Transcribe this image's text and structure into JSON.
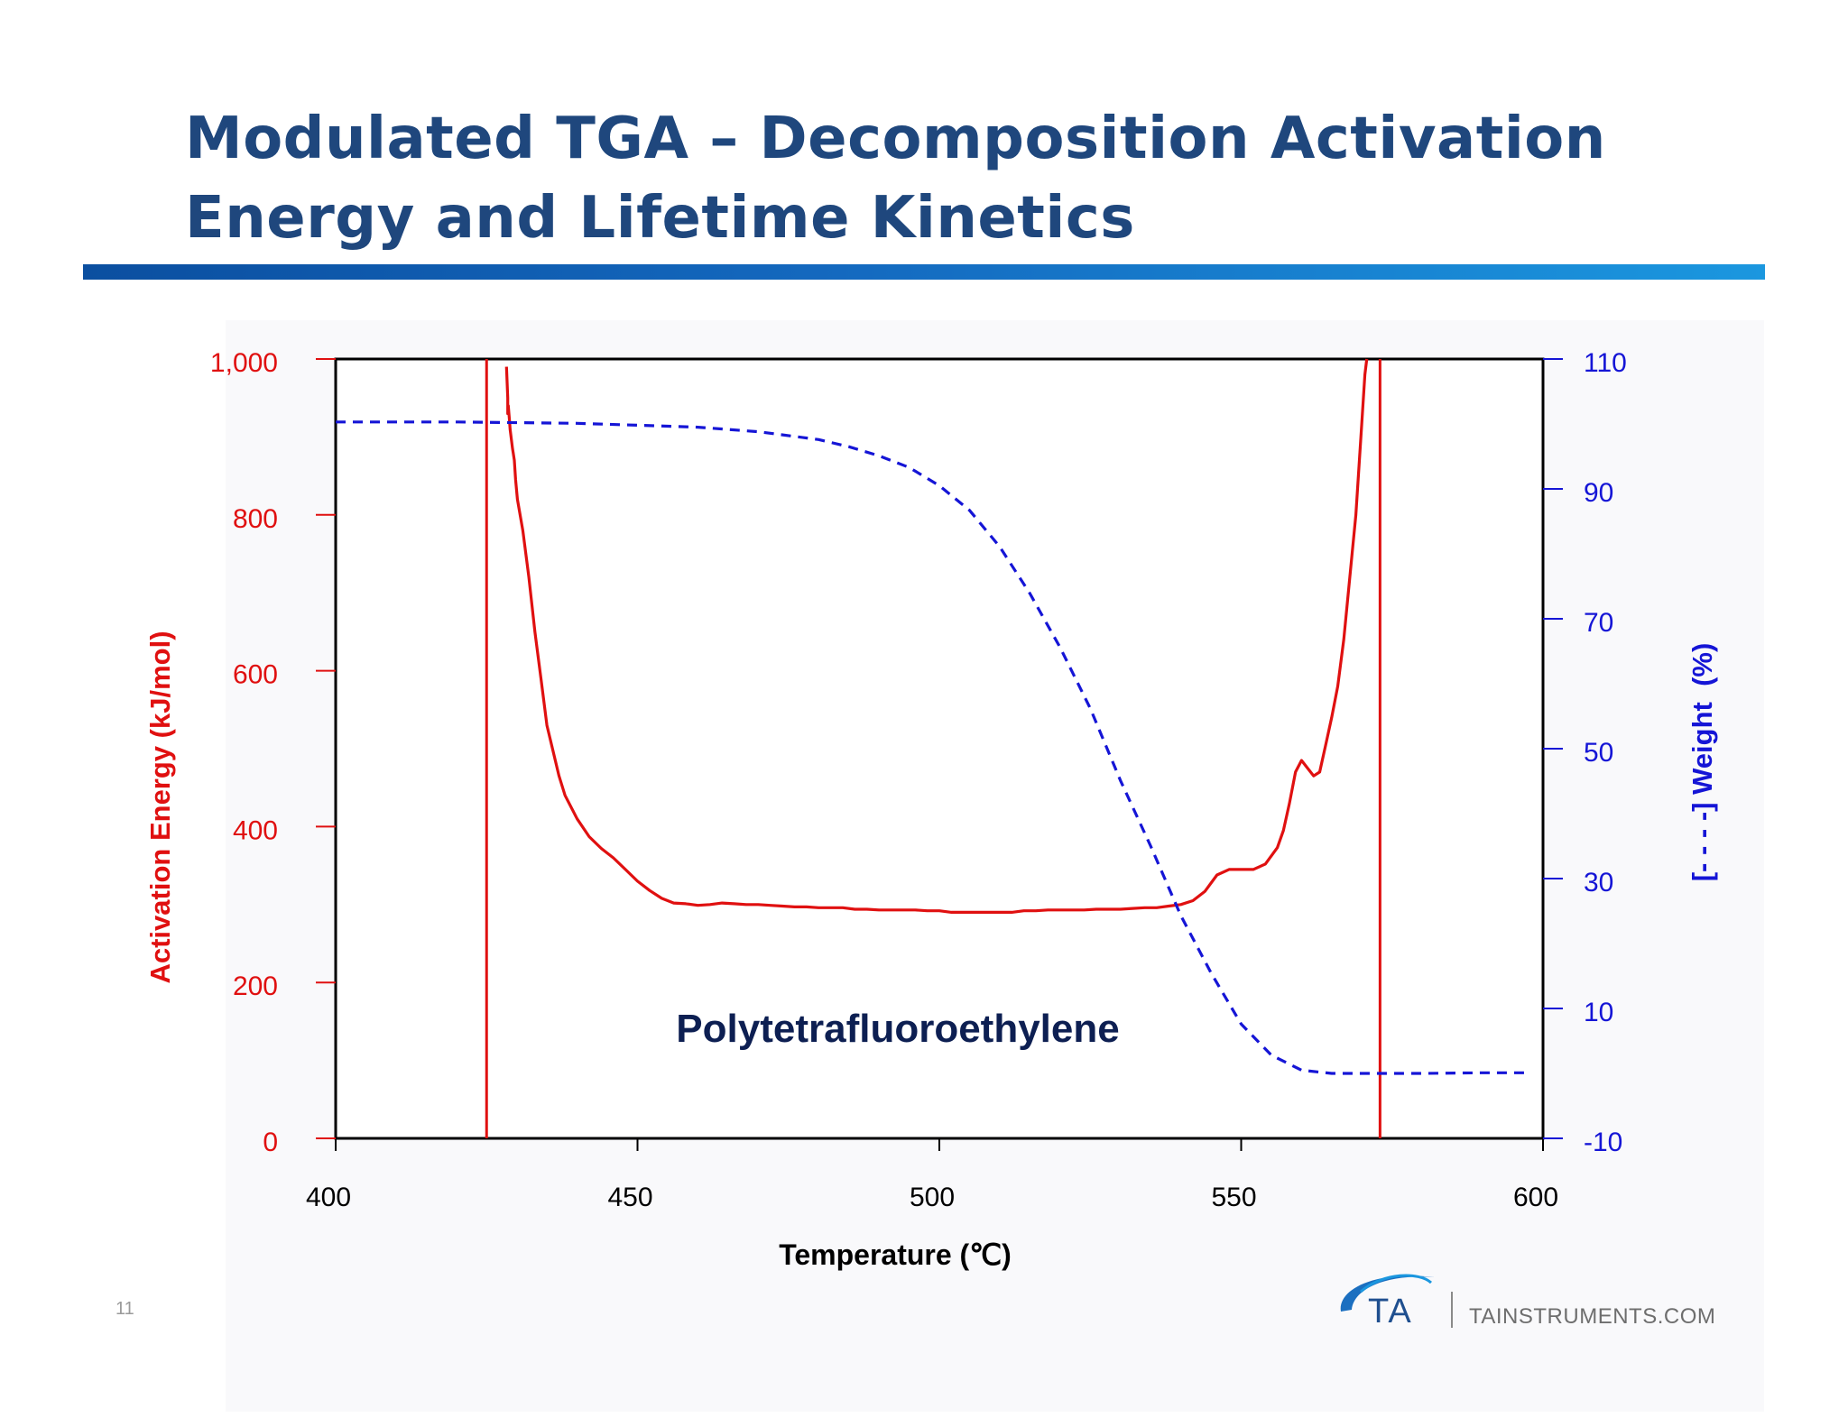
{
  "title": {
    "line1": "Modulated TGA – Decomposition Activation",
    "line2": "Energy and Lifetime Kinetics"
  },
  "page_number": "11",
  "footer": {
    "logo_text": "TA",
    "website": "TAINSTRUMENTS.COM"
  },
  "colors": {
    "title": "#1f477d",
    "activation": "#e01010",
    "weight": "#1515d6",
    "annotation": "#0d1f52"
  },
  "chart_data": {
    "type": "line",
    "annotation": "Polytetrafluoroethylene",
    "xlabel": "Temperature (℃)",
    "xlim": [
      400,
      600
    ],
    "x_ticks": [
      "400",
      "450",
      "500",
      "550",
      "600"
    ],
    "y_left": {
      "label": "Activation Energy (kJ/mol)",
      "lim": [
        0,
        1000
      ],
      "ticks": [
        "0",
        "200",
        "400",
        "600",
        "800",
        "1,000"
      ]
    },
    "y_right": {
      "label": "[- - - -] Weight  (%)",
      "lim": [
        -10,
        110
      ],
      "ticks": [
        "-10",
        "10",
        "30",
        "50",
        "70",
        "90",
        "110"
      ]
    },
    "vertical_markers": [
      425,
      573
    ],
    "series": [
      {
        "axis": "left",
        "style": "solid",
        "x": [
          428.3,
          428.5,
          428.5,
          428.6,
          428.8,
          428.9,
          429.3,
          429.4,
          429.6,
          429.8,
          430.1,
          431,
          432,
          433,
          434,
          435,
          437,
          438,
          440,
          442,
          444,
          446,
          448,
          450,
          452,
          454,
          456,
          458,
          460,
          462,
          464,
          466,
          468,
          470,
          472,
          474,
          476,
          478,
          480,
          482,
          484,
          486,
          488,
          490,
          492,
          494,
          496,
          498,
          500,
          502,
          504,
          506,
          508,
          510,
          512,
          514,
          516,
          518,
          520,
          522,
          524,
          526,
          528,
          530,
          532,
          534,
          536,
          538,
          540,
          542,
          544,
          546,
          548,
          550,
          552,
          554,
          556,
          557,
          558,
          559,
          560,
          561,
          562,
          563,
          564,
          565,
          566,
          567,
          568,
          569,
          570,
          570.5,
          570.8
        ],
        "values": [
          990,
          950,
          930,
          940,
          920,
          910,
          885,
          880,
          870,
          845,
          820,
          780,
          720,
          650,
          590,
          530,
          465,
          440,
          410,
          387,
          372,
          360,
          345,
          330,
          318,
          308,
          302,
          301,
          299,
          300,
          302,
          301,
          300,
          300,
          299,
          298,
          297,
          297,
          296,
          296,
          296,
          294,
          294,
          293,
          293,
          293,
          293,
          292,
          292,
          290,
          290,
          290,
          290,
          290,
          290,
          292,
          292,
          293,
          293,
          293,
          293,
          294,
          294,
          294,
          295,
          296,
          296,
          298,
          300,
          305,
          317,
          338,
          345,
          345,
          345,
          352,
          373,
          395,
          430,
          470,
          485,
          475,
          465,
          470,
          505,
          540,
          580,
          640,
          720,
          800,
          920,
          980,
          1000
        ]
      },
      {
        "axis": "right",
        "style": "dashed",
        "x": [
          400,
          420,
          440,
          450,
          460,
          470,
          480,
          485,
          490,
          495,
          500,
          505,
          510,
          515,
          520,
          525,
          530,
          535,
          540,
          545,
          550,
          555,
          560,
          565,
          570,
          580,
          590,
          598
        ],
        "values": [
          100.3,
          100.3,
          100.1,
          99.8,
          99.5,
          98.8,
          97.6,
          96.5,
          95.1,
          93.3,
          90.5,
          86.7,
          81.1,
          73.9,
          65.6,
          56.2,
          45.1,
          35.0,
          24.3,
          15.5,
          7.6,
          2.8,
          0.5,
          0.0,
          0.0,
          0.0,
          0.1,
          0.1
        ]
      }
    ]
  }
}
